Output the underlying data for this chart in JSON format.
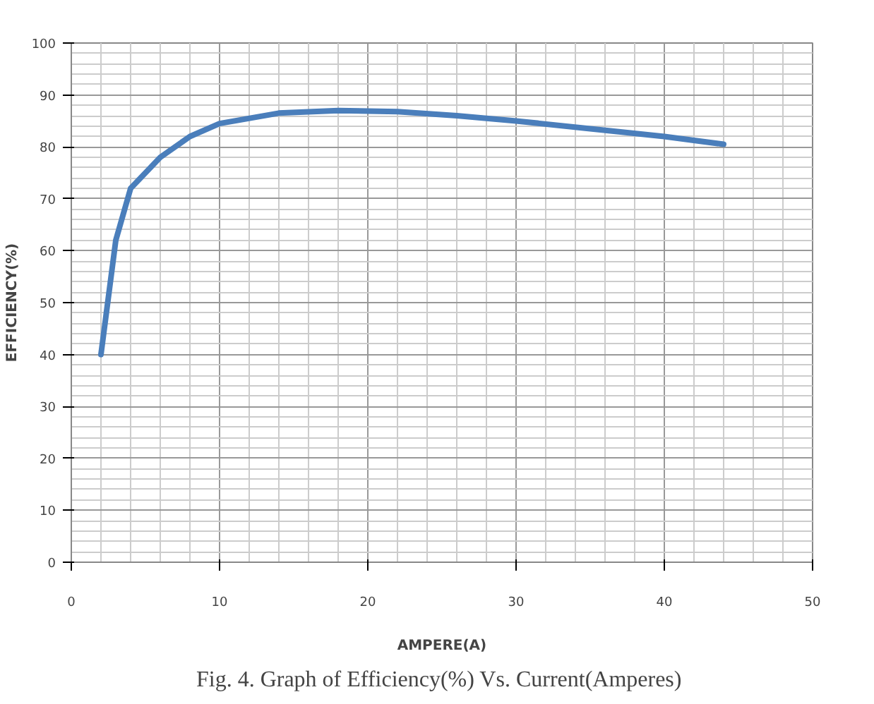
{
  "chart_data": {
    "type": "line",
    "xlabel": "AMPERE(A)",
    "ylabel": "EFFICIENCY(%)",
    "x": [
      2,
      3,
      4,
      6,
      8,
      10,
      14,
      18,
      22,
      26,
      30,
      35,
      40,
      44
    ],
    "series": [
      {
        "color": "#4a7ebb",
        "values": [
          40,
          62,
          72,
          78,
          82,
          84.5,
          86.5,
          87,
          86.8,
          86,
          85,
          83.5,
          82,
          80.5
        ]
      }
    ],
    "xlim": [
      0,
      50
    ],
    "xticks": [
      0,
      10,
      20,
      30,
      40,
      50
    ],
    "ylim": [
      0,
      100
    ],
    "yticks": [
      0,
      10,
      20,
      30,
      40,
      50,
      60,
      70,
      80,
      90,
      100
    ],
    "grid": true,
    "marker": "none",
    "line_style": "solid",
    "annotations": [
      "Fig. 4. Graph of  Efficiency(%) Vs. Current(Amperes)"
    ]
  }
}
